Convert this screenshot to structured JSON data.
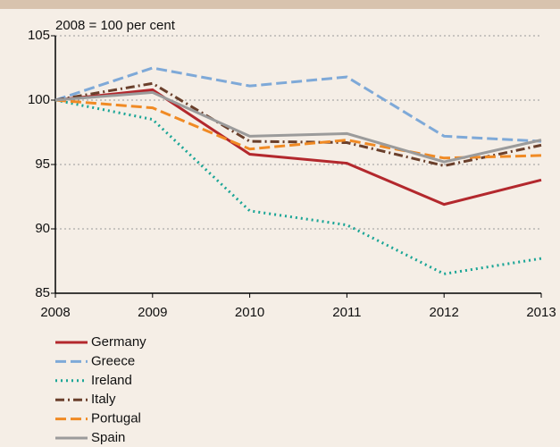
{
  "chart_data": {
    "type": "line",
    "y_label": "2008 = 100 per cent",
    "x": [
      2008,
      2009,
      2010,
      2011,
      2012,
      2013
    ],
    "xlim": [
      2008,
      2013
    ],
    "xticks": [
      2008,
      2009,
      2010,
      2011,
      2012,
      2013
    ],
    "ylim": [
      85,
      105
    ],
    "yticks": [
      85,
      90,
      95,
      100,
      105
    ],
    "grid": true,
    "legend": "bottom",
    "series": [
      {
        "name": "Germany",
        "color": "#b3282d",
        "style": "solid",
        "values": [
          100,
          100.8,
          95.8,
          95.1,
          91.9,
          93.8
        ]
      },
      {
        "name": "Greece",
        "color": "#7ea9d8",
        "style": "dashed",
        "values": [
          100,
          102.5,
          101.1,
          101.8,
          97.2,
          96.8
        ]
      },
      {
        "name": "Ireland",
        "color": "#1aa596",
        "style": "dotted",
        "values": [
          100,
          98.5,
          91.4,
          90.3,
          86.5,
          87.7
        ]
      },
      {
        "name": "Italy",
        "color": "#6a3f2b",
        "style": "dashdot",
        "values": [
          100,
          101.3,
          96.8,
          96.7,
          94.9,
          96.5
        ]
      },
      {
        "name": "Portugal",
        "color": "#f08a24",
        "style": "dashed",
        "values": [
          100,
          99.4,
          96.2,
          96.9,
          95.5,
          95.7
        ]
      },
      {
        "name": "Spain",
        "color": "#9b9b9b",
        "style": "solid",
        "values": [
          100,
          100.6,
          97.2,
          97.4,
          95.2,
          96.9
        ]
      }
    ]
  }
}
